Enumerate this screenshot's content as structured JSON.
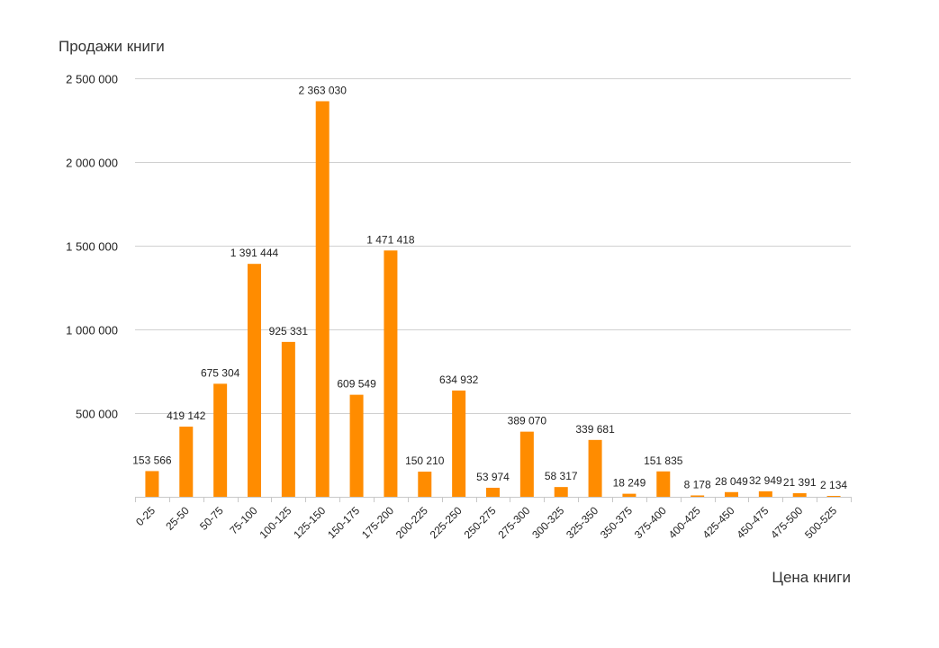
{
  "chart_data": {
    "type": "bar",
    "title": "Продажи книги",
    "xlabel": "Цена книги",
    "ylabel": "",
    "ylim": [
      0,
      2500000
    ],
    "yticks": [
      0,
      500000,
      1000000,
      1500000,
      2000000,
      2500000
    ],
    "ytick_labels": [
      "",
      "500 000",
      "1 000 000",
      "1 500 000",
      "2 000 000",
      "2 500 000"
    ],
    "grid": true,
    "bar_color": "#ff8c00",
    "categories": [
      "0-25",
      "25-50",
      "50-75",
      "75-100",
      "100-125",
      "125-150",
      "150-175",
      "175-200",
      "200-225",
      "225-250",
      "250-275",
      "275-300",
      "300-325",
      "325-350",
      "350-375",
      "375-400",
      "400-425",
      "425-450",
      "450-475",
      "475-500",
      "500-525"
    ],
    "values": [
      153566,
      419142,
      675304,
      1391444,
      925331,
      2363030,
      609549,
      1471418,
      150210,
      634932,
      53974,
      389070,
      58317,
      339681,
      18249,
      151835,
      8178,
      28049,
      32949,
      21391,
      2134
    ],
    "value_labels": [
      "153 566",
      "419 142",
      "675 304",
      "1 391 444",
      "925 331",
      "2 363 030",
      "609 549",
      "1 471 418",
      "150 210",
      "634 932",
      "53 974",
      "389 070",
      "58 317",
      "339 681",
      "18 249",
      "151 835",
      "8 178",
      "28 049",
      "32 949",
      "21 391",
      "2 134"
    ]
  }
}
